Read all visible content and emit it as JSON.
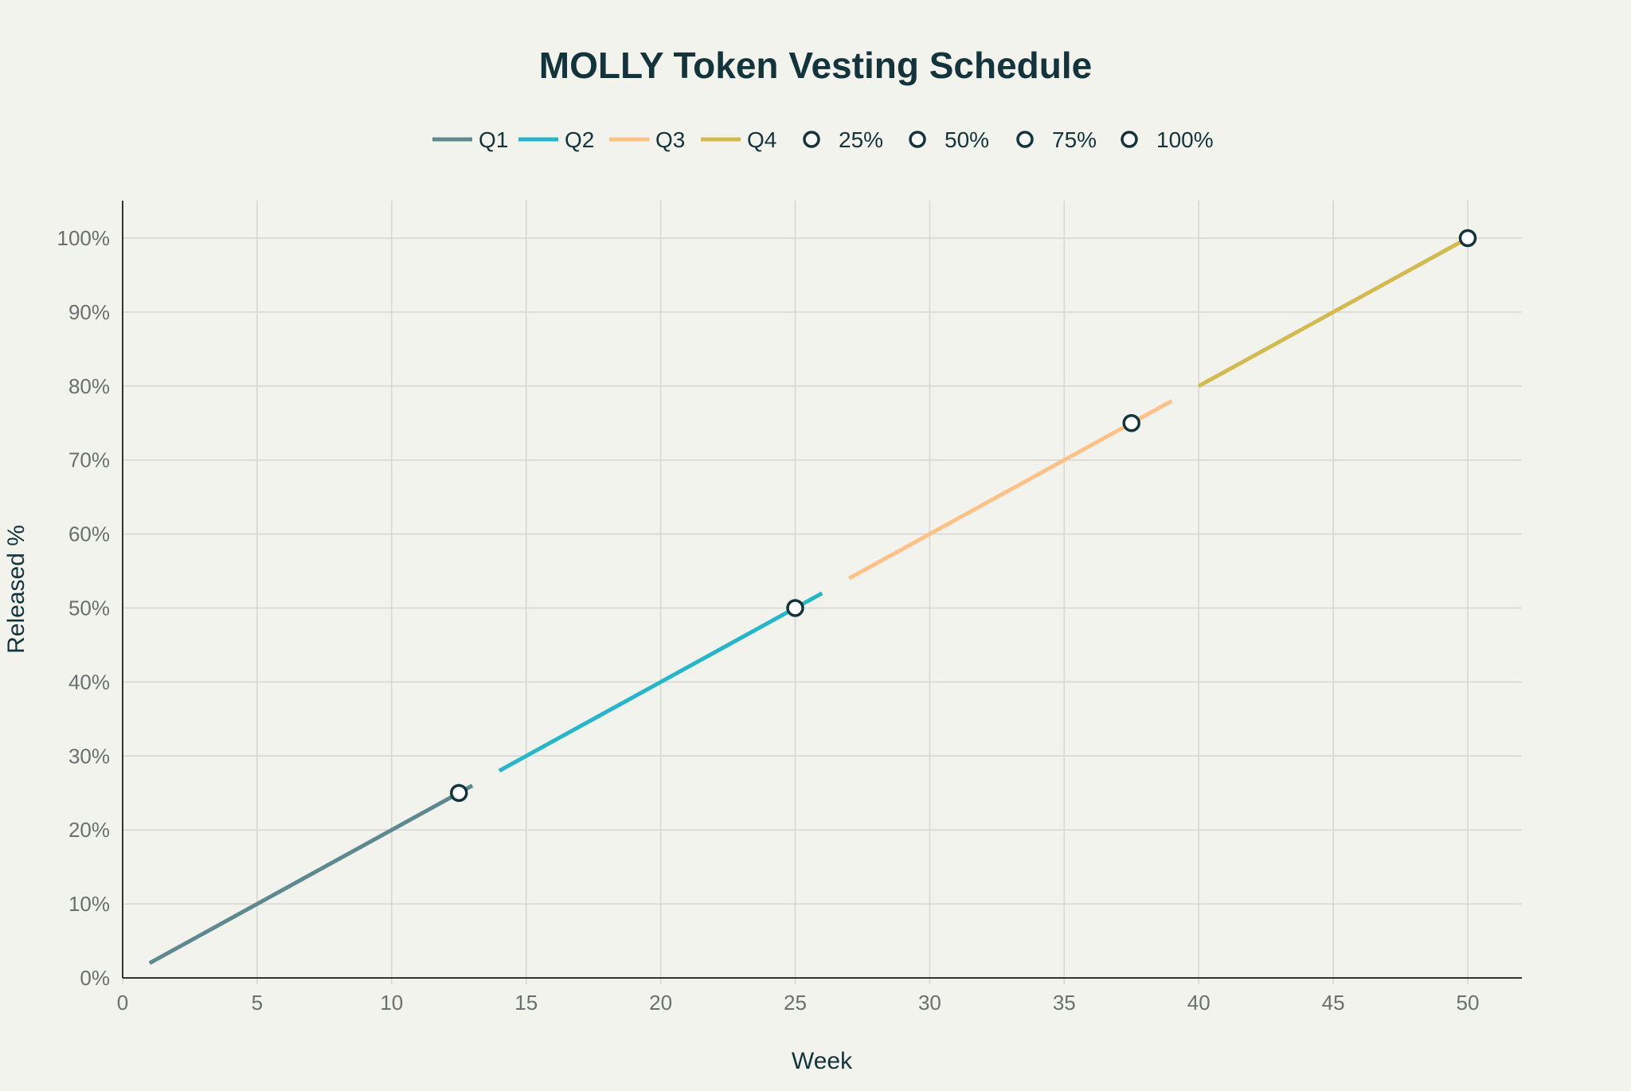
{
  "chart_data": {
    "type": "line",
    "title": "MOLLY Token Vesting Schedule",
    "xlabel": "Week",
    "ylabel": "Released %",
    "xlim": [
      0,
      52
    ],
    "ylim": [
      0,
      105
    ],
    "x_ticks": [
      0,
      5,
      10,
      15,
      20,
      25,
      30,
      35,
      40,
      45,
      50
    ],
    "y_ticks": [
      0,
      10,
      20,
      30,
      40,
      50,
      60,
      70,
      80,
      90,
      100
    ],
    "y_tick_format": "percent",
    "grid": true,
    "legend_position": "top-center",
    "series": [
      {
        "name": "Q1",
        "kind": "line",
        "color": "#5e8a8f",
        "x": [
          1,
          13
        ],
        "y": [
          2,
          26
        ]
      },
      {
        "name": "Q2",
        "kind": "line",
        "color": "#22b8cc",
        "x": [
          14,
          26
        ],
        "y": [
          28,
          52
        ]
      },
      {
        "name": "Q3",
        "kind": "line",
        "color": "#ffc185",
        "x": [
          27,
          39
        ],
        "y": [
          54,
          78
        ]
      },
      {
        "name": "Q4",
        "kind": "line",
        "color": "#d2ba4c",
        "x": [
          40,
          50
        ],
        "y": [
          80,
          100
        ]
      },
      {
        "name": "25%",
        "kind": "marker",
        "color": "#13343b",
        "x": [
          12.5
        ],
        "y": [
          25
        ]
      },
      {
        "name": "50%",
        "kind": "marker",
        "color": "#13343b",
        "x": [
          25
        ],
        "y": [
          50
        ]
      },
      {
        "name": "75%",
        "kind": "marker",
        "color": "#13343b",
        "x": [
          37.5
        ],
        "y": [
          75
        ]
      },
      {
        "name": "100%",
        "kind": "marker",
        "color": "#13343b",
        "x": [
          50
        ],
        "y": [
          100
        ]
      }
    ]
  }
}
